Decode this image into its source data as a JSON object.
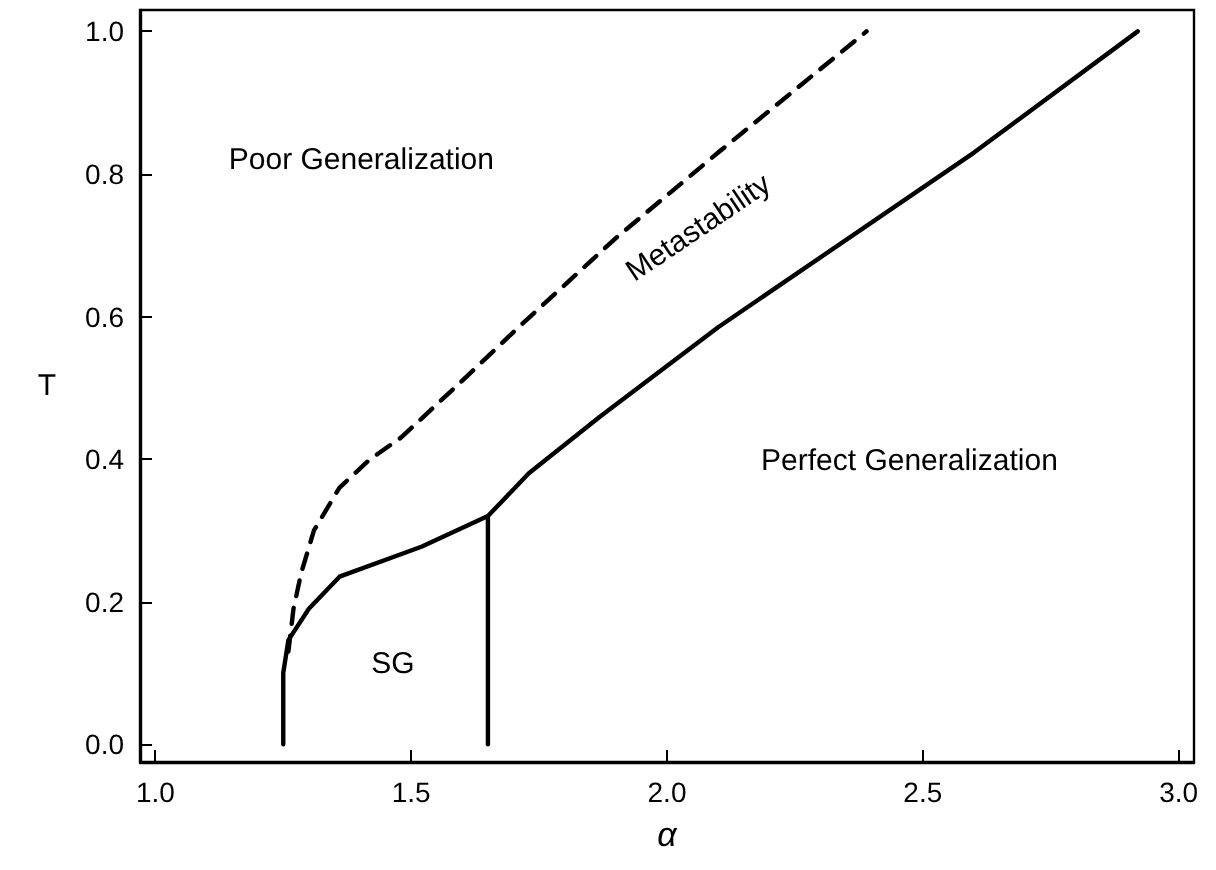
{
  "chart_data": {
    "type": "line",
    "xlabel": "α",
    "ylabel": "T",
    "xlim": [
      0.97,
      3.03
    ],
    "ylim": [
      -0.025,
      1.03
    ],
    "xticks": [
      {
        "value": 1,
        "label": "1.0"
      },
      {
        "value": 1.5,
        "label": "1.5"
      },
      {
        "value": 2,
        "label": "2.0"
      },
      {
        "value": 2.5,
        "label": "2.5"
      },
      {
        "value": 3,
        "label": "3.0"
      }
    ],
    "yticks": [
      {
        "value": 0,
        "label": "0.0"
      },
      {
        "value": 0.2,
        "label": "0.2"
      },
      {
        "value": 0.4,
        "label": "0.4"
      },
      {
        "value": 0.6,
        "label": "0.6"
      },
      {
        "value": 0.8,
        "label": "0.8"
      },
      {
        "value": 1,
        "label": "1.0"
      }
    ],
    "grid": false,
    "marker": "none",
    "series": [
      {
        "color": "#000000",
        "line_style": "solid",
        "x": [
          1.25,
          1.25,
          1.26,
          1.3,
          1.36,
          1.52,
          1.65,
          1.73,
          1.87,
          2.1,
          2.6,
          2.92
        ],
        "values": [
          0,
          0.1,
          0.146,
          0.19,
          0.235,
          0.277,
          0.32,
          0.38,
          0.46,
          0.585,
          0.83,
          1.0
        ]
      },
      {
        "color": "#000000",
        "line_style": "solid",
        "x": [
          1.65,
          1.65
        ],
        "values": [
          0,
          0.32
        ]
      },
      {
        "color": "#000000",
        "line_style": "dashed",
        "x": [
          1.26,
          1.27,
          1.285,
          1.31,
          1.36,
          1.42,
          1.48,
          1.6,
          1.71,
          1.9,
          2.1,
          2.39
        ],
        "values": [
          0.13,
          0.19,
          0.24,
          0.3,
          0.36,
          0.4,
          0.43,
          0.51,
          0.585,
          0.71,
          0.83,
          1.0
        ]
      }
    ],
    "annotations": [
      "Poor Generalization",
      "Metastability",
      "Perfect Generalization",
      "SG"
    ]
  }
}
